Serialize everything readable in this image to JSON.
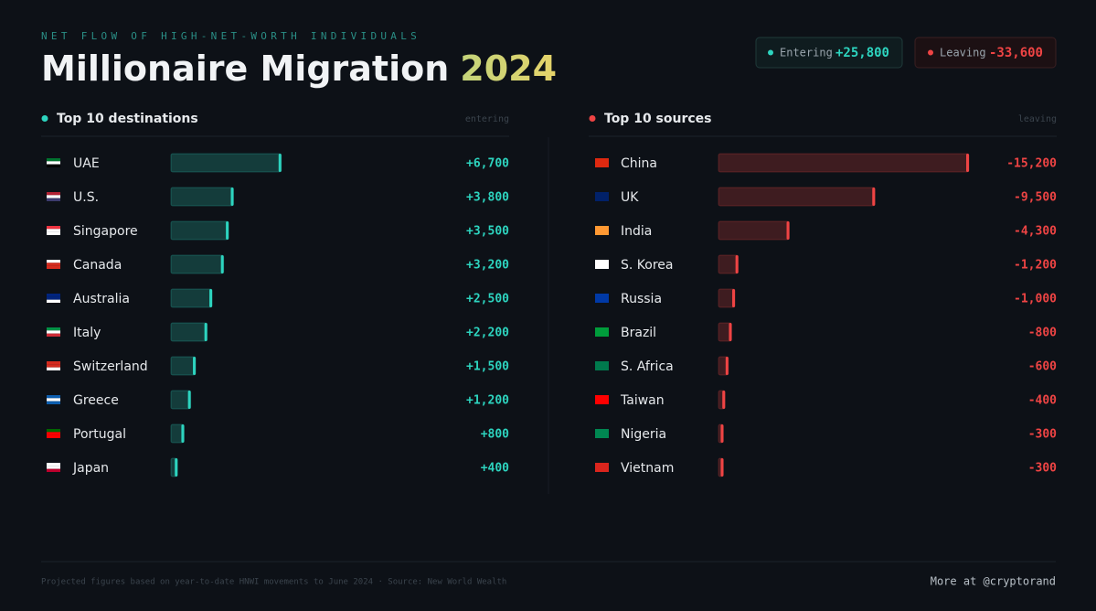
{
  "header": {
    "kicker": "NET FLOW OF HIGH-NET-WORTH INDIVIDUALS",
    "title": "Millionaire Migration",
    "year": "2024",
    "totals": [
      {
        "name": "Entering",
        "value": "+25,800"
      },
      {
        "name": "Leaving",
        "value": "-33,600"
      }
    ]
  },
  "chart_data": [
    {
      "type": "bar",
      "orientation": "horizontal",
      "title": "Top 10 destinations",
      "note": "entering",
      "color": "#2dd4bf",
      "categories": [
        "UAE",
        "U.S.",
        "Singapore",
        "Canada",
        "Australia",
        "Italy",
        "Switzerland",
        "Greece",
        "Portugal",
        "Japan"
      ],
      "values": [
        6700,
        3800,
        3500,
        3200,
        2500,
        2200,
        1500,
        1200,
        800,
        400
      ],
      "value_labels": [
        "+6,700",
        "+3,800",
        "+3,500",
        "+3,200",
        "+2,500",
        "+2,200",
        "+1,500",
        "+1,200",
        "+800",
        "+400"
      ]
    },
    {
      "type": "bar",
      "orientation": "horizontal",
      "title": "Top 10 sources",
      "note": "leaving",
      "color": "#ef4444",
      "categories": [
        "China",
        "UK",
        "India",
        "S. Korea",
        "Russia",
        "Brazil",
        "S. Africa",
        "Taiwan",
        "Nigeria",
        "Vietnam"
      ],
      "values": [
        -15200,
        -9500,
        -4300,
        -1200,
        -1000,
        -800,
        -600,
        -400,
        -300,
        -300
      ],
      "value_labels": [
        "-15,200",
        "-9,500",
        "-4,300",
        "-1,200",
        "-1,000",
        "-800",
        "-600",
        "-400",
        "-300",
        "-300"
      ]
    }
  ],
  "footer": {
    "source": "Projected figures based on year-to-date HNWI movements to June 2024 · Source: New World Wealth",
    "credit": "More at @cryptorand"
  }
}
